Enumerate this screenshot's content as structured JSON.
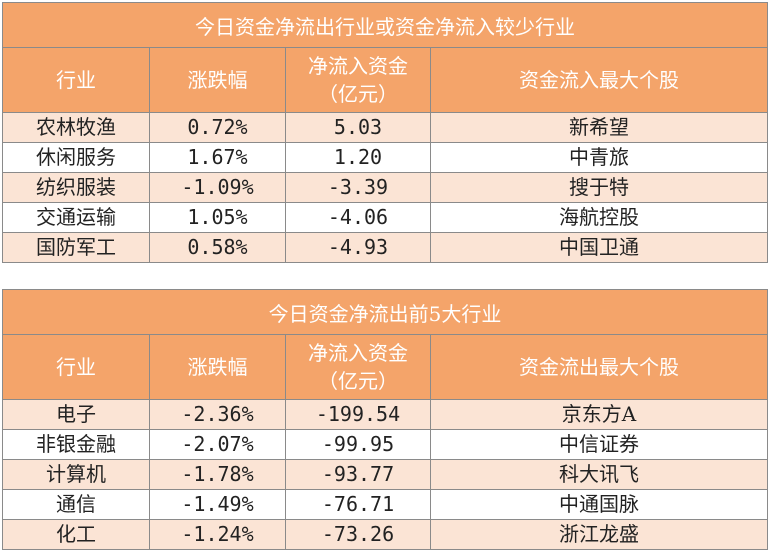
{
  "table1": {
    "title": "今日资金净流出行业或资金净流入较少行业",
    "headers": [
      "行业",
      "涨跌幅",
      "净流入资金\n（亿元）",
      "资金流入最大个股"
    ],
    "rows": [
      [
        "农林牧渔",
        "0.72%",
        "5.03",
        "新希望"
      ],
      [
        "休闲服务",
        "1.67%",
        "1.20",
        "中青旅"
      ],
      [
        "纺织服装",
        "-1.09%",
        "-3.39",
        "搜于特"
      ],
      [
        "交通运输",
        "1.05%",
        "-4.06",
        "海航控股"
      ],
      [
        "国防军工",
        "0.58%",
        "-4.93",
        "中国卫通"
      ]
    ]
  },
  "table2": {
    "title": "今日资金净流出前5大行业",
    "headers": [
      "行业",
      "涨跌幅",
      "净流入资金\n（亿元）",
      "资金流出最大个股"
    ],
    "rows": [
      [
        "电子",
        "-2.36%",
        "-199.54",
        "京东方A"
      ],
      [
        "非银金融",
        "-2.07%",
        "-99.95",
        "中信证券"
      ],
      [
        "计算机",
        "-1.78%",
        "-93.77",
        "科大讯飞"
      ],
      [
        "通信",
        "-1.49%",
        "-76.71",
        "中通国脉"
      ],
      [
        "化工",
        "-1.24%",
        "-73.26",
        "浙江龙盛"
      ]
    ]
  },
  "colors": {
    "header_bg": "#f4a46a",
    "alt_row_bg": "#fbe4d5",
    "header_text": "#ffffff"
  }
}
